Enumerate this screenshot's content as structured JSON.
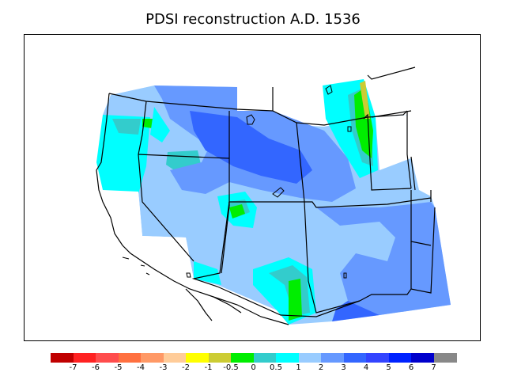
{
  "title": "PDSI reconstruction A.D. 1536",
  "colors": {
    "frame": "#000000",
    "state_lines": "#000000"
  },
  "legend": {
    "swatches": [
      "#c00000",
      "#ff2222",
      "#ff4d4d",
      "#ff7040",
      "#ff9966",
      "#ffcc99",
      "#ffff00",
      "#cccc33",
      "#00ee00",
      "#33cccc",
      "#00ffff",
      "#99ccff",
      "#6699ff",
      "#3366ff",
      "#3344ff",
      "#0022ff",
      "#0000cc",
      "#888888"
    ],
    "labels": [
      "-7",
      "-6",
      "-5",
      "-4",
      "-3",
      "-2",
      "-1",
      "-0.5",
      "0",
      "0.5",
      "1",
      "2",
      "3",
      "4",
      "5",
      "6",
      "7"
    ]
  }
}
